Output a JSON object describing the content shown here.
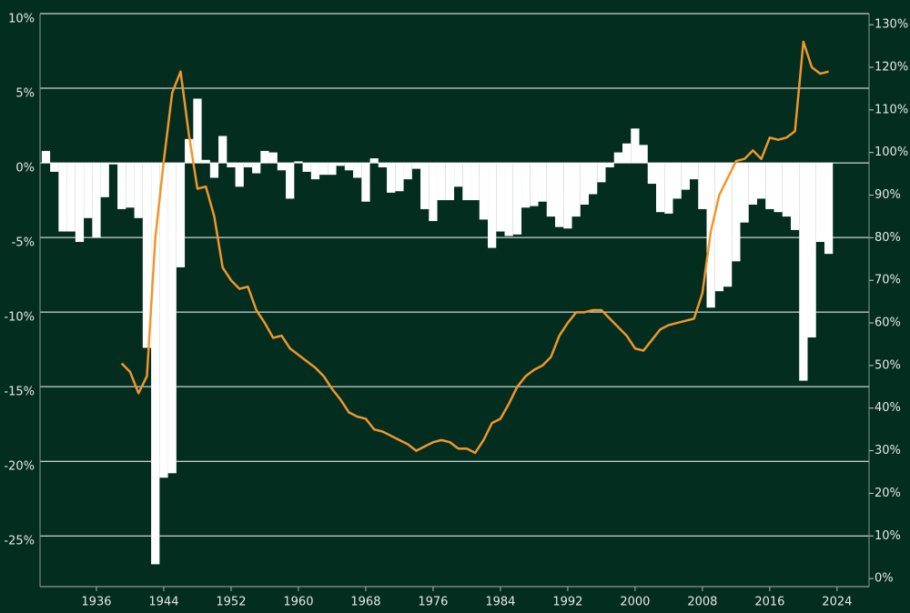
{
  "chart_data": {
    "type": "combo",
    "x": [
      1930,
      1931,
      1932,
      1933,
      1934,
      1935,
      1936,
      1937,
      1938,
      1939,
      1940,
      1941,
      1942,
      1943,
      1944,
      1945,
      1946,
      1947,
      1948,
      1949,
      1950,
      1951,
      1952,
      1953,
      1954,
      1955,
      1956,
      1957,
      1958,
      1959,
      1960,
      1961,
      1962,
      1963,
      1964,
      1965,
      1966,
      1967,
      1968,
      1969,
      1970,
      1971,
      1972,
      1973,
      1974,
      1975,
      1976,
      1977,
      1978,
      1979,
      1980,
      1981,
      1982,
      1983,
      1984,
      1985,
      1986,
      1987,
      1988,
      1989,
      1990,
      1991,
      1992,
      1993,
      1994,
      1995,
      1996,
      1997,
      1998,
      1999,
      2000,
      2001,
      2002,
      2003,
      2004,
      2005,
      2006,
      2007,
      2008,
      2009,
      2010,
      2011,
      2012,
      2013,
      2014,
      2015,
      2016,
      2017,
      2018,
      2019,
      2020,
      2021,
      2022,
      2023
    ],
    "series": [
      {
        "type": "bar",
        "color": "#ffffff",
        "values": [
          0.8,
          -0.6,
          -4.6,
          -4.6,
          -5.3,
          -3.7,
          -5.0,
          -2.3,
          -0.1,
          -3.1,
          -3.0,
          -3.7,
          -12.4,
          -26.9,
          -21.1,
          -20.8,
          -7.0,
          1.6,
          4.3,
          0.2,
          -1.0,
          1.8,
          -0.3,
          -1.6,
          -0.3,
          -0.7,
          0.8,
          0.7,
          -0.5,
          -2.4,
          0.1,
          -0.6,
          -1.1,
          -0.8,
          -0.8,
          -0.2,
          -0.5,
          -1.0,
          -2.6,
          0.3,
          -0.3,
          -2.0,
          -1.9,
          -1.1,
          -0.4,
          -3.1,
          -3.9,
          -2.5,
          -2.5,
          -1.6,
          -2.5,
          -2.5,
          -3.8,
          -5.7,
          -4.6,
          -4.9,
          -4.8,
          -3.0,
          -2.9,
          -2.6,
          -3.6,
          -4.3,
          -4.4,
          -3.6,
          -2.8,
          -2.1,
          -1.3,
          -0.3,
          0.7,
          1.3,
          2.3,
          1.2,
          -1.4,
          -3.3,
          -3.4,
          -2.4,
          -1.8,
          -1.1,
          -3.1,
          -9.7,
          -8.6,
          -8.3,
          -6.6,
          -4.0,
          -2.8,
          -2.4,
          -3.1,
          -3.3,
          -3.6,
          -4.5,
          -14.6,
          -11.7,
          -5.3,
          -6.1
        ]
      },
      {
        "type": "line",
        "color": "#f0962c",
        "axis": "y2",
        "values": [
          null,
          null,
          null,
          null,
          null,
          null,
          null,
          null,
          null,
          50.5,
          48.5,
          43.5,
          47.5,
          80,
          98,
          114,
          119,
          104,
          91.5,
          92,
          85,
          73,
          70,
          68,
          68.5,
          63,
          60,
          56.5,
          57,
          54,
          52.5,
          51,
          49.5,
          47.5,
          44.5,
          42,
          39,
          38,
          37.5,
          35,
          34.5,
          33.5,
          32.5,
          31.5,
          30,
          31,
          32,
          32.5,
          32,
          30.5,
          30.5,
          29.5,
          32.5,
          36.5,
          37.5,
          41,
          45,
          47.5,
          49,
          50,
          52,
          57,
          60,
          62.5,
          62.5,
          63,
          63,
          61,
          59,
          57,
          54,
          53.5,
          56,
          58.5,
          59.5,
          60,
          60.5,
          61,
          67,
          81.5,
          90,
          94,
          98,
          98.5,
          100.5,
          98.5,
          103.5,
          103,
          103.5,
          105,
          126,
          120,
          118.5,
          119
        ]
      }
    ],
    "xlim": [
      1929.3,
      2027.8
    ],
    "xticks": [
      1936,
      1944,
      1952,
      1960,
      1968,
      1976,
      1984,
      1992,
      2000,
      2008,
      2016,
      2024
    ],
    "ylim": [
      -28.4,
      10
    ],
    "yticks": [
      {
        "value": 10,
        "label": "10%"
      },
      {
        "value": 5,
        "label": "5%"
      },
      {
        "value": 0,
        "label": "0%"
      },
      {
        "value": -5,
        "label": "-5%"
      },
      {
        "value": -10,
        "label": "-10%"
      },
      {
        "value": -15,
        "label": "-15%"
      },
      {
        "value": -20,
        "label": "-20%"
      },
      {
        "value": -25,
        "label": "-25%"
      }
    ],
    "y2lim": [
      -1.9,
      132.6
    ],
    "y2ticks": [
      {
        "value": 130,
        "label": "130%"
      },
      {
        "value": 120,
        "label": "120%"
      },
      {
        "value": 110,
        "label": "110%"
      },
      {
        "value": 100,
        "label": "100%"
      },
      {
        "value": 90,
        "label": "90%"
      },
      {
        "value": 80,
        "label": "80%"
      },
      {
        "value": 70,
        "label": "70%"
      },
      {
        "value": 60,
        "label": "60%"
      },
      {
        "value": 50,
        "label": "50%"
      },
      {
        "value": 40,
        "label": "40%"
      },
      {
        "value": 30,
        "label": "30%"
      },
      {
        "value": 20,
        "label": "20%"
      },
      {
        "value": 10,
        "label": "10%"
      },
      {
        "value": 0,
        "label": "0%"
      }
    ],
    "grid": true
  }
}
